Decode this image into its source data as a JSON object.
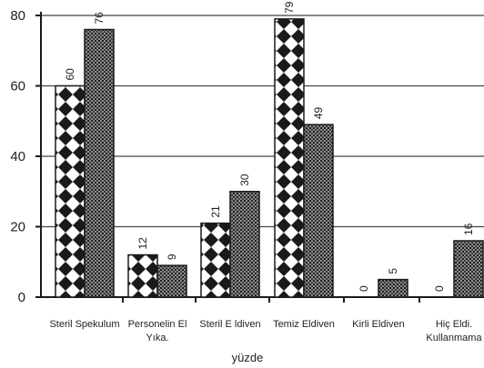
{
  "chart_data": {
    "type": "bar",
    "categories": [
      "Steril Spekulum",
      "Personelin El Yıka.",
      "Steril E ldiven",
      "Temiz Eldiven",
      "Kirli Eldiven",
      "Hiç Eldi. Kullanmama"
    ],
    "series": [
      {
        "values": [
          60,
          12,
          21,
          79,
          0,
          0
        ],
        "pattern": "diamond-checker"
      },
      {
        "values": [
          76,
          9,
          30,
          49,
          5,
          16
        ],
        "pattern": "dense-dot"
      }
    ],
    "xlabel": "yüzde",
    "ylabel": "",
    "ylim": [
      0,
      80
    ],
    "yticks": [
      0,
      20,
      40,
      60,
      80
    ],
    "grid": true,
    "legend": "none",
    "colors": {
      "ink": "#1a1a1a",
      "grid": "#444444",
      "background": "#ffffff"
    }
  }
}
